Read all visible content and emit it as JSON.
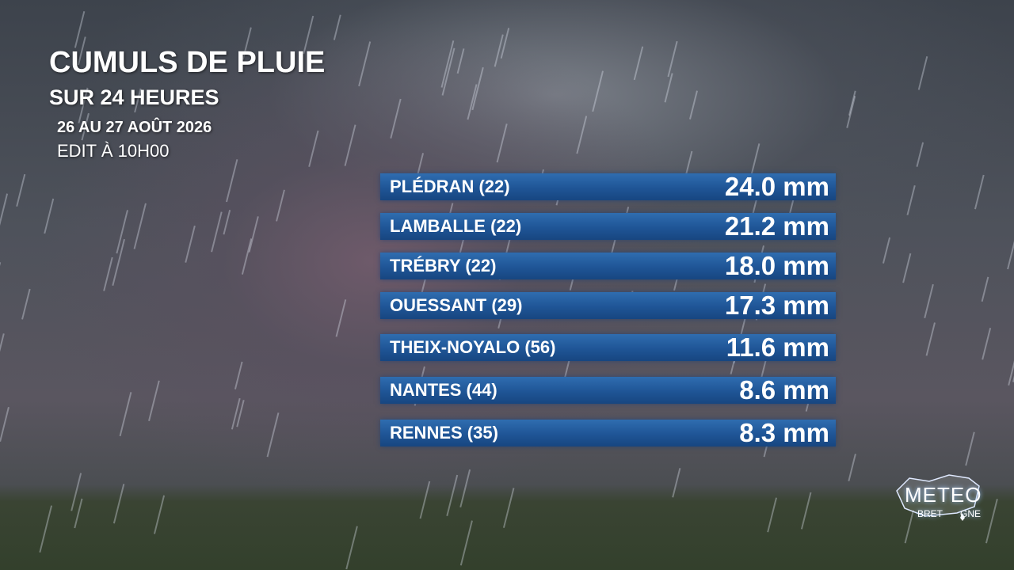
{
  "header": {
    "title": "CUMULS DE PLUIE",
    "subtitle": "SUR 24 HEURES",
    "date": "26 AU 27 AOÛT 2026",
    "edit": "EDIT À 10H00"
  },
  "table": {
    "rows": [
      [
        "PLÉDRAN (22)",
        "24.0 mm"
      ],
      [
        "LAMBALLE (22)",
        "21.2 mm"
      ],
      [
        "TRÉBRY (22)",
        "18.0 mm"
      ],
      [
        "OUESSANT (29)",
        "17.3 mm"
      ],
      [
        "THEIX-NOYALO (56)",
        "11.6 mm"
      ],
      [
        "NANTES (44)",
        "8.6 mm"
      ],
      [
        "RENNES (35)",
        "8.3 mm"
      ]
    ]
  },
  "logo": {
    "title": "METEO",
    "sub_left": "BRET",
    "sub_right": "GNE"
  }
}
